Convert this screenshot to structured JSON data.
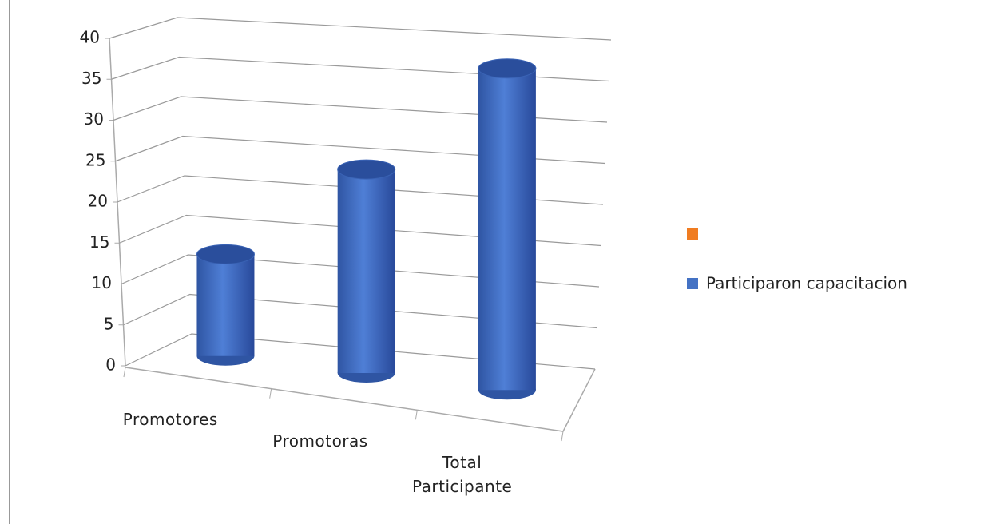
{
  "chart_data": {
    "type": "bar3d",
    "categories": [
      "Promotores",
      "Promotoras",
      "Total Participante"
    ],
    "series": [
      {
        "color": "#f07c21",
        "values": [
          null,
          null,
          null
        ]
      },
      {
        "name": "Participaron capacitacion",
        "color": "#4472c4",
        "values": [
          13,
          25,
          38
        ]
      }
    ],
    "ylim": [
      0,
      40
    ],
    "yticks": [
      0,
      5,
      10,
      15,
      20,
      25,
      30,
      35,
      40
    ],
    "grid": true
  }
}
